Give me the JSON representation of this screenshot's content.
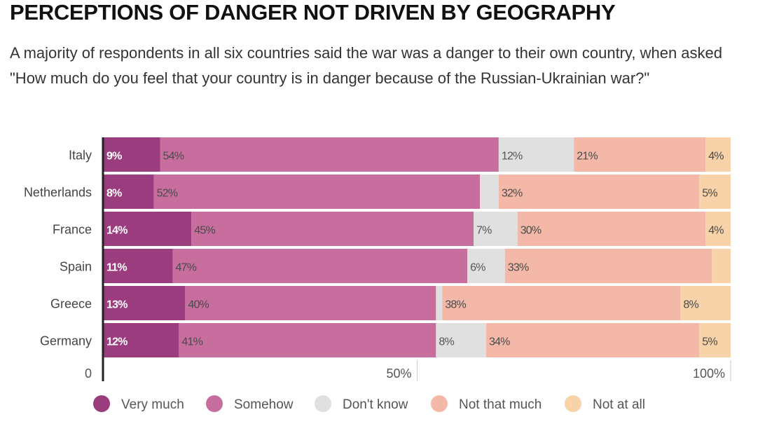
{
  "chart_data": {
    "type": "bar",
    "orientation": "horizontal",
    "stacked": true,
    "title": "PERCEPTIONS OF DANGER NOT DRIVEN BY GEOGRAPHY",
    "subtitle": "A majority of respondents in all six countries said the war was a danger to their own country, when asked \"How much do you feel that your country is in danger because of the Russian-Ukrainian war?\"",
    "categories": [
      "Italy",
      "Netherlands",
      "France",
      "Spain",
      "Greece",
      "Germany"
    ],
    "series": [
      {
        "name": "Very much",
        "color": "#9b3c7e",
        "values": [
          9,
          8,
          14,
          11,
          13,
          12
        ]
      },
      {
        "name": "Somehow",
        "color": "#c86e9f",
        "values": [
          54,
          52,
          45,
          47,
          40,
          41
        ]
      },
      {
        "name": "Don't know",
        "color": "#e0e0e0",
        "values": [
          12,
          3,
          7,
          6,
          1,
          8
        ]
      },
      {
        "name": "Not that much",
        "color": "#f3b8a8",
        "values": [
          21,
          32,
          30,
          33,
          38,
          34
        ]
      },
      {
        "name": "Not at all",
        "color": "#f8d2a8",
        "values": [
          4,
          5,
          4,
          3,
          8,
          5
        ]
      }
    ],
    "data_labels": [
      [
        "9%",
        "54%",
        "12%",
        "21%",
        "4%"
      ],
      [
        "8%",
        "52%",
        "",
        "32%",
        "5%"
      ],
      [
        "14%",
        "45%",
        "7%",
        "30%",
        "4%"
      ],
      [
        "11%",
        "47%",
        "6%",
        "33%",
        ""
      ],
      [
        "13%",
        "40%",
        "",
        "38%",
        "8%"
      ],
      [
        "12%",
        "41%",
        "8%",
        "34%",
        "5%"
      ]
    ],
    "xaxis_ticks": [
      "0",
      "50%",
      "100%"
    ],
    "xlim": [
      0,
      100
    ],
    "legend_position": "bottom"
  }
}
